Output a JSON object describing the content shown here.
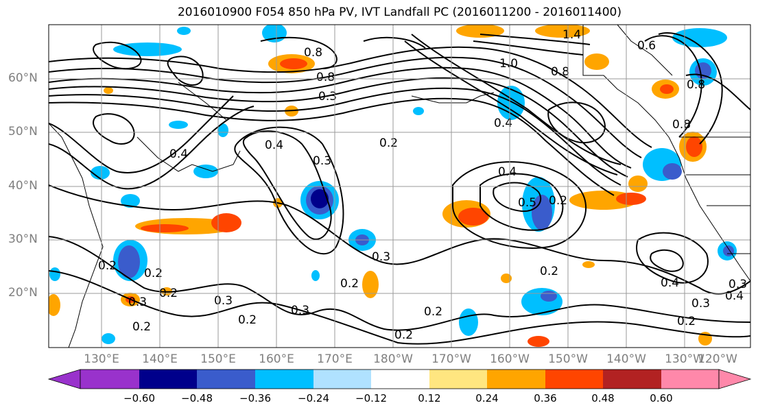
{
  "title": "2016010900 F054 850 hPa PV, IVT Landfall PC (2016011200 - 2016011400)",
  "map": {
    "lat_labels": [
      "60°N",
      "50°N",
      "40°N",
      "30°N",
      "20°N"
    ],
    "lon_labels": [
      "130°E",
      "140°E",
      "150°E",
      "160°E",
      "170°E",
      "180°W",
      "170°W",
      "160°W",
      "150°W",
      "140°W",
      "130°W",
      "120°W"
    ],
    "contour_labels": [
      "0.2",
      "0.3",
      "0.4",
      "0.8",
      "0.8",
      "0.3",
      "0.2",
      "0.4",
      "0.3",
      "0.2",
      "0.4",
      "0.5",
      "0.2",
      "0.3",
      "0.2",
      "0.2",
      "0.3",
      "0.2",
      "0.3",
      "0.2",
      "0.2",
      "0.2",
      "0.3",
      "0.2",
      "0.4",
      "0.3",
      "0.2",
      "1.4",
      "1.0",
      "0.8",
      "0.8",
      "0.6",
      "0.8",
      "0.4",
      "0.4"
    ]
  },
  "colorbar": {
    "ticks": [
      "−0.60",
      "−0.48",
      "−0.36",
      "−0.24",
      "−0.12",
      "0.12",
      "0.24",
      "0.36",
      "0.48",
      "0.60"
    ],
    "colors": [
      "#9932cc",
      "#00008b",
      "#3a5ccc",
      "#00bfff",
      "#b0e2ff",
      "#ffffff",
      "#ffe680",
      "#ffa500",
      "#ff4500",
      "#b22222",
      "#ff88aa"
    ]
  }
}
